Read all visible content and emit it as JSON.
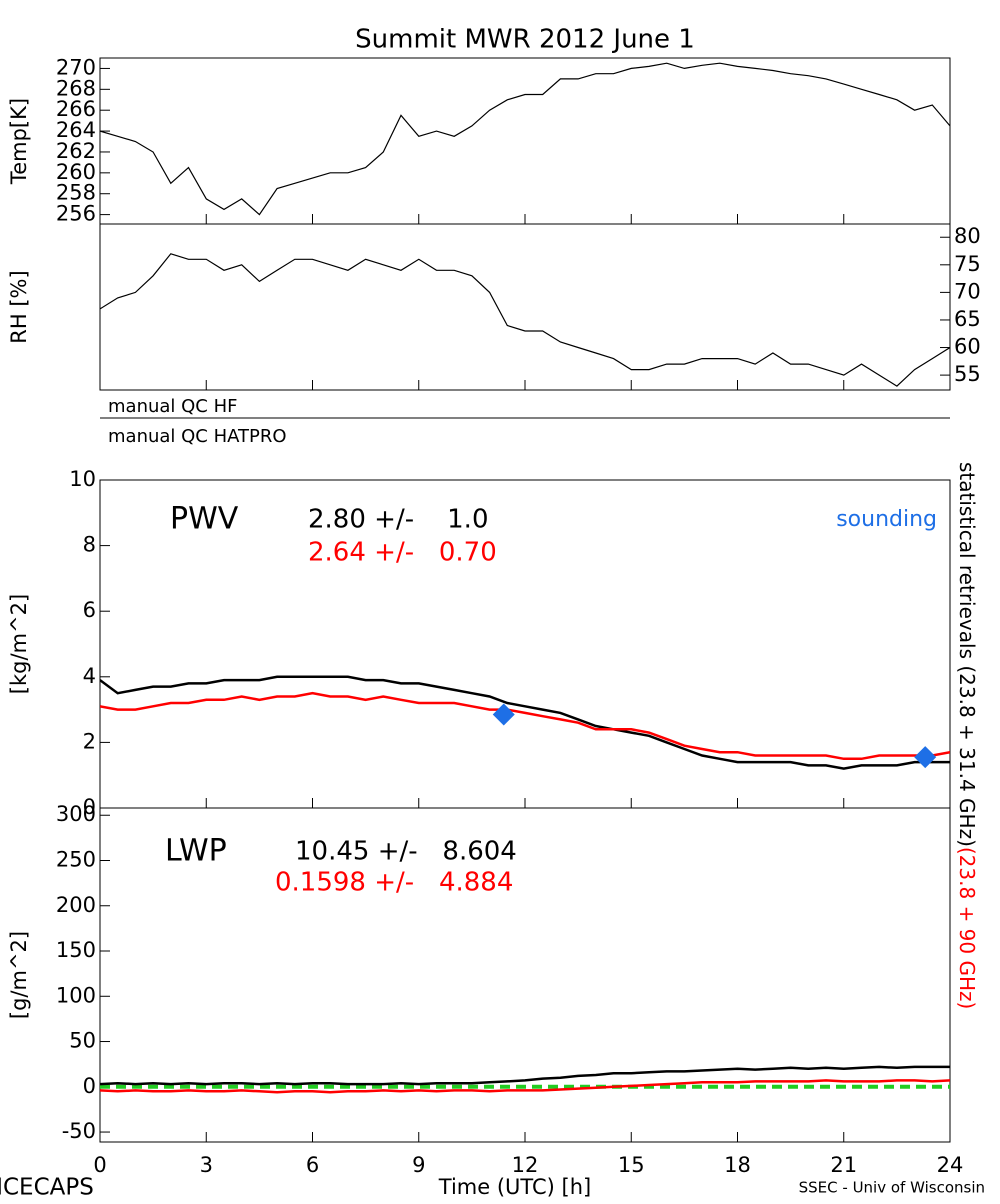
{
  "figure": {
    "title": "Summit MWR 2012 June  1",
    "footer_left": "ICECAPS",
    "footer_right": "SSEC - Univ of Wisconsin",
    "side_label_black": "statistical retrievals (23.8 + 31.4 GHz)",
    "side_label_red": "(23.8 + 90 GHz)",
    "qc_flags": [
      "manual QC HF",
      "manual QC HATPRO"
    ]
  },
  "chart_data": [
    {
      "type": "line",
      "ylabel": "Temp[K]",
      "yaxis_side": "left",
      "xlim": [
        0,
        24
      ],
      "ylim": [
        255.1,
        271.0
      ],
      "yticks": [
        256,
        258,
        260,
        262,
        264,
        266,
        268,
        270
      ],
      "x": [
        0,
        0.5,
        1,
        1.5,
        2,
        2.5,
        3,
        3.5,
        4,
        4.5,
        5,
        5.5,
        6,
        6.5,
        7,
        7.5,
        8,
        8.5,
        9,
        9.5,
        10,
        10.5,
        11,
        11.5,
        12,
        12.5,
        13,
        13.5,
        14,
        14.5,
        15,
        15.5,
        16,
        16.5,
        17,
        17.5,
        18,
        18.5,
        19,
        19.5,
        20,
        20.5,
        21,
        21.5,
        22,
        22.5,
        23,
        23.5,
        24
      ],
      "series": [
        {
          "name": "Temp",
          "color": "#000000",
          "values": [
            264,
            263.5,
            263,
            262,
            259,
            260.5,
            257.5,
            256.5,
            257.5,
            256,
            258.5,
            259,
            259.5,
            260,
            260,
            260.5,
            262,
            265.5,
            263.5,
            264,
            263.5,
            264.5,
            266,
            267,
            267.5,
            267.5,
            269,
            269,
            269.5,
            269.5,
            270,
            270.2,
            270.5,
            270,
            270.3,
            270.5,
            270.2,
            270,
            269.8,
            269.5,
            269.3,
            269,
            268.5,
            268,
            267.5,
            267,
            266,
            266.5,
            264.5
          ]
        }
      ]
    },
    {
      "type": "line",
      "ylabel": "RH [%]",
      "yaxis_side": "right",
      "xlim": [
        0,
        24
      ],
      "ylim": [
        52.3,
        82.4
      ],
      "yticks": [
        55,
        60,
        65,
        70,
        75,
        80
      ],
      "x": [
        0,
        0.5,
        1,
        1.5,
        2,
        2.5,
        3,
        3.5,
        4,
        4.5,
        5,
        5.5,
        6,
        6.5,
        7,
        7.5,
        8,
        8.5,
        9,
        9.5,
        10,
        10.5,
        11,
        11.5,
        12,
        12.5,
        13,
        13.5,
        14,
        14.5,
        15,
        15.5,
        16,
        16.5,
        17,
        17.5,
        18,
        18.5,
        19,
        19.5,
        20,
        20.5,
        21,
        21.5,
        22,
        22.5,
        23,
        23.5,
        24
      ],
      "series": [
        {
          "name": "RH",
          "color": "#000000",
          "values": [
            67,
            69,
            70,
            73,
            77,
            76,
            76,
            74,
            75,
            72,
            74,
            76,
            76,
            75,
            74,
            76,
            75,
            74,
            76,
            74,
            74,
            73,
            70,
            64,
            63,
            63,
            61,
            60,
            59,
            58,
            56,
            56,
            57,
            57,
            58,
            58,
            58,
            57,
            59,
            57,
            57,
            56,
            55,
            57,
            55,
            53,
            56,
            58,
            60
          ]
        }
      ]
    },
    {
      "type": "line",
      "ylabel": "[kg/m^2]",
      "yaxis_side": "left",
      "xlim": [
        0,
        24
      ],
      "ylim": [
        0,
        10
      ],
      "yticks": [
        0,
        2,
        4,
        6,
        8,
        10
      ],
      "annotations": [
        {
          "text": "PWV",
          "color": "#000000"
        },
        {
          "text": "2.80 +/-    1.0",
          "color": "#000000"
        },
        {
          "text": "2.64 +/-   0.70",
          "color": "#ff0000"
        }
      ],
      "x": [
        0,
        0.5,
        1,
        1.5,
        2,
        2.5,
        3,
        3.5,
        4,
        4.5,
        5,
        5.5,
        6,
        6.5,
        7,
        7.5,
        8,
        8.5,
        9,
        9.5,
        10,
        10.5,
        11,
        11.5,
        12,
        12.5,
        13,
        13.5,
        14,
        14.5,
        15,
        15.5,
        16,
        16.5,
        17,
        17.5,
        18,
        18.5,
        19,
        19.5,
        20,
        20.5,
        21,
        21.5,
        22,
        22.5,
        23,
        23.5,
        24
      ],
      "series": [
        {
          "color": "#000000",
          "values": [
            3.9,
            3.5,
            3.6,
            3.7,
            3.7,
            3.8,
            3.8,
            3.9,
            3.9,
            3.9,
            4.0,
            4.0,
            4.0,
            4.0,
            4.0,
            3.9,
            3.9,
            3.8,
            3.8,
            3.7,
            3.6,
            3.5,
            3.4,
            3.2,
            3.1,
            3.0,
            2.9,
            2.7,
            2.5,
            2.4,
            2.3,
            2.2,
            2.0,
            1.8,
            1.6,
            1.5,
            1.4,
            1.4,
            1.4,
            1.4,
            1.3,
            1.3,
            1.2,
            1.3,
            1.3,
            1.3,
            1.4,
            1.4,
            1.4
          ]
        },
        {
          "color": "#ff0000",
          "values": [
            3.1,
            3.0,
            3.0,
            3.1,
            3.2,
            3.2,
            3.3,
            3.3,
            3.4,
            3.3,
            3.4,
            3.4,
            3.5,
            3.4,
            3.4,
            3.3,
            3.4,
            3.3,
            3.2,
            3.2,
            3.2,
            3.1,
            3.0,
            3.0,
            2.9,
            2.8,
            2.7,
            2.6,
            2.4,
            2.4,
            2.4,
            2.3,
            2.1,
            1.9,
            1.8,
            1.7,
            1.7,
            1.6,
            1.6,
            1.6,
            1.6,
            1.6,
            1.5,
            1.5,
            1.6,
            1.6,
            1.6,
            1.6,
            1.7
          ]
        },
        {
          "name": "sounding",
          "type": "scatter",
          "color": "#1e6fe6",
          "x": [
            11.4,
            23.3
          ],
          "values": [
            2.85,
            1.55
          ]
        }
      ]
    },
    {
      "type": "line",
      "ylabel": "[g/m^2]",
      "yaxis_side": "left",
      "xlim": [
        0,
        24
      ],
      "ylim": [
        -61,
        308
      ],
      "yticks": [
        -50,
        0,
        50,
        100,
        150,
        200,
        250,
        300
      ],
      "xlabel": "Time (UTC) [h]",
      "xticks": [
        0,
        3,
        6,
        9,
        12,
        15,
        18,
        21,
        24
      ],
      "reference_line": {
        "value": 0,
        "color": "#22cc22"
      },
      "annotations": [
        {
          "text": "LWP",
          "color": "#000000"
        },
        {
          "text": "10.45 +/-   8.604",
          "color": "#000000"
        },
        {
          "text": "0.1598 +/-   4.884",
          "color": "#ff0000"
        }
      ],
      "x": [
        0,
        0.5,
        1,
        1.5,
        2,
        2.5,
        3,
        3.5,
        4,
        4.5,
        5,
        5.5,
        6,
        6.5,
        7,
        7.5,
        8,
        8.5,
        9,
        9.5,
        10,
        10.5,
        11,
        11.5,
        12,
        12.5,
        13,
        13.5,
        14,
        14.5,
        15,
        15.5,
        16,
        16.5,
        17,
        17.5,
        18,
        18.5,
        19,
        19.5,
        20,
        20.5,
        21,
        21.5,
        22,
        22.5,
        23,
        23.5,
        24
      ],
      "series": [
        {
          "color": "#000000",
          "values": [
            3,
            4,
            3,
            4,
            3,
            4,
            3,
            4,
            4,
            3,
            4,
            3,
            4,
            4,
            3,
            3,
            3,
            4,
            3,
            4,
            4,
            4,
            5,
            6,
            7,
            9,
            10,
            12,
            13,
            15,
            15,
            16,
            17,
            17,
            18,
            19,
            20,
            19,
            20,
            21,
            20,
            21,
            20,
            21,
            22,
            21,
            22,
            22,
            22
          ]
        },
        {
          "color": "#ff0000",
          "values": [
            -4,
            -5,
            -4,
            -5,
            -5,
            -4,
            -5,
            -5,
            -4,
            -5,
            -6,
            -5,
            -5,
            -6,
            -5,
            -5,
            -4,
            -5,
            -4,
            -5,
            -4,
            -4,
            -5,
            -4,
            -4,
            -4,
            -3,
            -2,
            -1,
            0,
            1,
            2,
            3,
            4,
            5,
            5,
            5,
            6,
            6,
            6,
            6,
            7,
            6,
            6,
            6,
            7,
            7,
            6,
            7
          ]
        }
      ]
    }
  ]
}
